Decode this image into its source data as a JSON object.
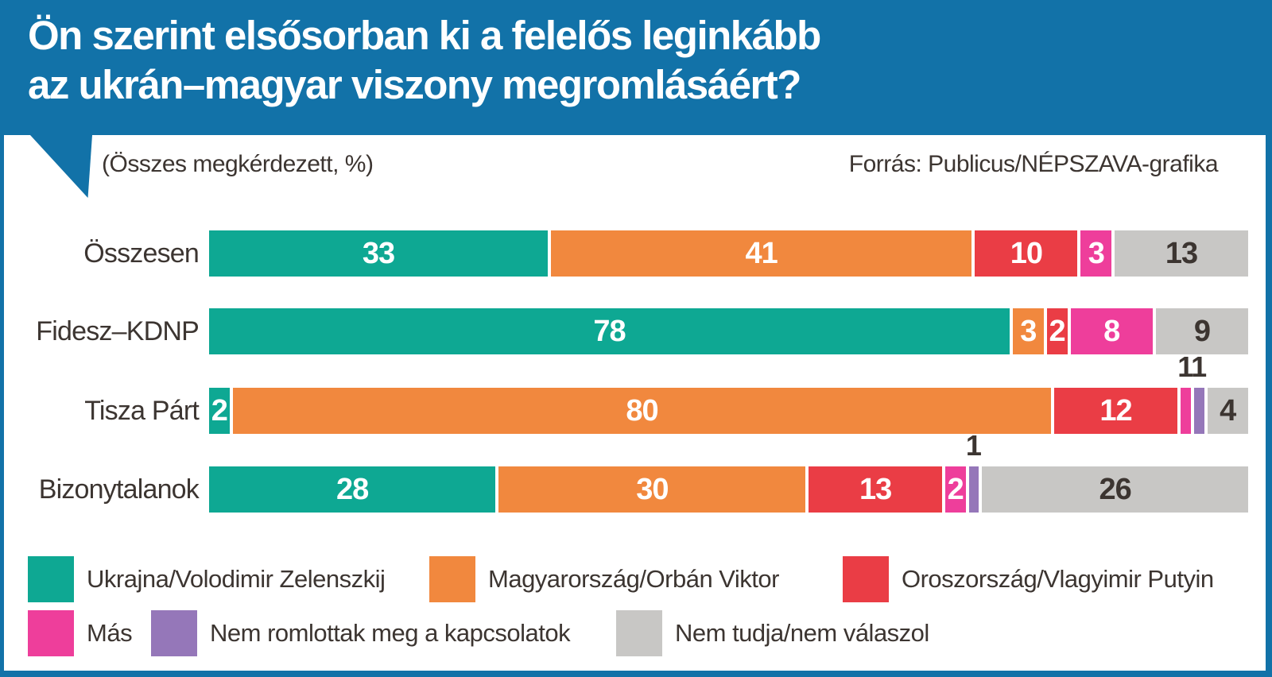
{
  "title": {
    "line1": "Ön szerint elsősorban ki a felelős leginkább",
    "line2": "az ukrán–magyar viszony megromlásáért?"
  },
  "subtitle": "(Összes megkérdezett, %)",
  "source": "Forrás: Publicus/NÉPSZAVA-grafika",
  "colors": {
    "banner_blue": "#1272a8",
    "frame_blue": "#1272a8",
    "text_dark": "#3c3531",
    "label_on_color": "#ffffff",
    "label_on_gray": "#3c3531"
  },
  "chart_data": {
    "type": "bar",
    "variant": "horizontal-stacked",
    "unit": "%",
    "xlim": [
      0,
      100
    ],
    "grid": false,
    "legend_position": "bottom",
    "categories": [
      "Összesen",
      "Fidesz–KDNP",
      "Tisza Párt",
      "Bizonytalanok"
    ],
    "series": [
      {
        "key": "ukrajna",
        "name": "Ukrajna/Volodimir Zelenszkij",
        "color": "#0ea893",
        "label_color": "#ffffff",
        "values": [
          33,
          78,
          2,
          28
        ]
      },
      {
        "key": "magyarorszag",
        "name": "Magyarország/Orbán Viktor",
        "color": "#f1883e",
        "label_color": "#ffffff",
        "values": [
          41,
          3,
          80,
          30
        ]
      },
      {
        "key": "oroszorszag",
        "name": "Oroszország/Vlagyimir Putyin",
        "color": "#ea3d45",
        "label_color": "#ffffff",
        "values": [
          10,
          2,
          12,
          13
        ]
      },
      {
        "key": "mas",
        "name": "Más",
        "color": "#ee3e9b",
        "label_color": "#ffffff",
        "values": [
          3,
          8,
          1,
          2
        ]
      },
      {
        "key": "nem-romlottak",
        "name": "Nem romlottak meg a kapcsolatok",
        "color": "#9577b9",
        "label_color": "#ffffff",
        "values": [
          0,
          0,
          1,
          1
        ]
      },
      {
        "key": "nem-tudja",
        "name": "Nem tudja/nem válaszol",
        "color": "#c8c7c5",
        "label_color": "#3c3531",
        "values": [
          13,
          9,
          4,
          26
        ]
      }
    ]
  }
}
